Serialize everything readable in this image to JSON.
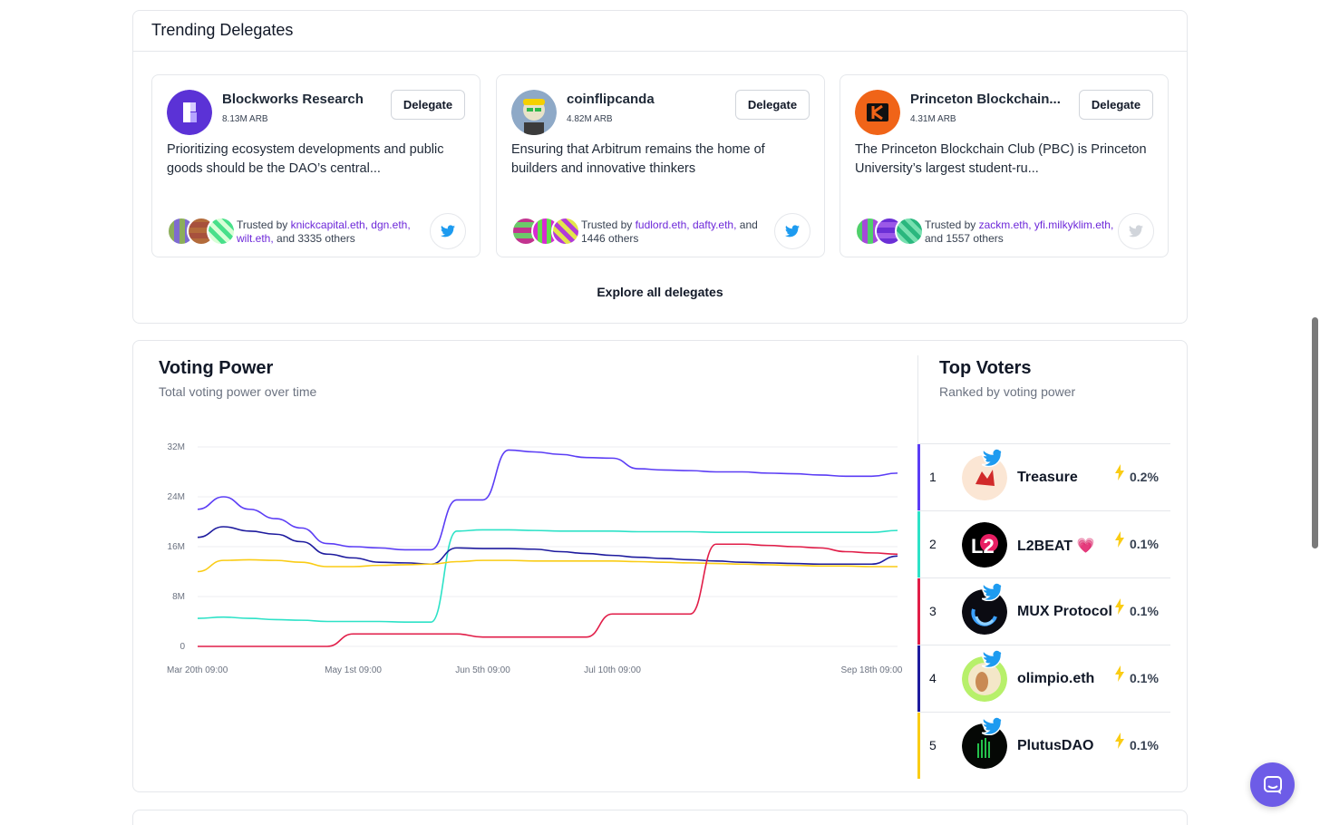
{
  "trending": {
    "title": "Trending Delegates",
    "explore_label": "Explore all delegates",
    "delegates": [
      {
        "name": "Blockworks Research",
        "arb": "8.13M ARB",
        "button": "Delegate",
        "description": "Prioritizing ecosystem developments and public goods should be the DAO’s central...",
        "trusted_prefix": "Trusted by ",
        "trusted_links": "knickcapital.eth, dgn.eth, wilt.eth,",
        "trusted_suffix": " and 3335 others",
        "twitter": "twitter-icon"
      },
      {
        "name": "coinflipcanda",
        "arb": "4.82M ARB",
        "button": "Delegate",
        "description": "Ensuring that Arbitrum remains the home of builders and innovative thinkers",
        "trusted_prefix": "Trusted by ",
        "trusted_links": "fudlord.eth, dafty.eth,",
        "trusted_suffix": " and 1446 others",
        "twitter": "twitter-icon"
      },
      {
        "name": "Princeton Blockchain...",
        "arb": "4.31M ARB",
        "button": "Delegate",
        "description": "The Princeton Blockchain Club (PBC) is Princeton University’s largest student-ru...",
        "trusted_prefix": "Trusted by ",
        "trusted_links": "zackm.eth, yfi.milkyklim.eth,",
        "trusted_suffix": " and 1557 others",
        "twitter": "twitter-icon"
      }
    ]
  },
  "voting_power": {
    "title": "Voting Power",
    "subtitle": "Total voting power over time"
  },
  "top_voters": {
    "title": "Top Voters",
    "subtitle": "Ranked by voting power",
    "items": [
      {
        "rank": "1",
        "name": "Treasure",
        "pct": "0.2%",
        "color": "#5b3df5"
      },
      {
        "rank": "2",
        "name": "L2BEAT 💗",
        "pct": "0.1%",
        "color": "#2de2c7"
      },
      {
        "rank": "3",
        "name": "MUX Protocol",
        "pct": "0.1%",
        "color": "#e11d48"
      },
      {
        "rank": "4",
        "name": "olimpio.eth",
        "pct": "0.1%",
        "color": "#1e1b9e"
      },
      {
        "rank": "5",
        "name": "PlutusDAO",
        "pct": "0.1%",
        "color": "#facc15"
      }
    ]
  },
  "chart_data": {
    "type": "line",
    "title": "Voting Power",
    "subtitle": "Total voting power over time",
    "xlabel": "",
    "ylabel": "",
    "x_tick_labels": [
      "Mar 20th 09:00",
      "May 1st 09:00",
      "Jun 5th 09:00",
      "Jul 10th 09:00",
      "Sep 18th 09:00"
    ],
    "y_tick_labels": [
      "0",
      "8M",
      "16M",
      "24M",
      "32M"
    ],
    "ylim": [
      0,
      32
    ],
    "grid": true,
    "x": [
      "Mar 20",
      "Mar 27",
      "Apr 3",
      "Apr 10",
      "Apr 17",
      "Apr 24",
      "May 1",
      "May 8",
      "May 15",
      "May 22",
      "May 29",
      "Jun 5",
      "Jun 12",
      "Jun 19",
      "Jun 26",
      "Jul 3",
      "Jul 10",
      "Jul 17",
      "Jul 24",
      "Jul 31",
      "Aug 7",
      "Aug 14",
      "Aug 21",
      "Aug 28",
      "Sep 4",
      "Sep 11",
      "Sep 18",
      "Sep 25"
    ],
    "series": [
      {
        "color": "#5b3df5",
        "values": [
          22,
          24,
          22,
          20.5,
          19,
          16.5,
          16,
          15.8,
          15.5,
          15.5,
          23.5,
          23.5,
          31.5,
          31.2,
          30.8,
          30.3,
          30.2,
          28.5,
          28.3,
          28.2,
          28,
          28,
          27.8,
          27.7,
          27.5,
          27.3,
          27.3,
          27.8
        ]
      },
      {
        "color": "#2de2c7",
        "values": [
          4.5,
          4.7,
          4.5,
          4.3,
          4.2,
          4,
          4,
          4,
          3.9,
          3.9,
          18.5,
          18.7,
          18.7,
          18.6,
          18.5,
          18.5,
          18.5,
          18.4,
          18.4,
          18.4,
          18.3,
          18.3,
          18.3,
          18.3,
          18.3,
          18.3,
          18.3,
          18.6
        ]
      },
      {
        "color": "#1e1b9e",
        "values": [
          17.5,
          19.2,
          18.5,
          18,
          16.8,
          14.8,
          14.2,
          13.5,
          13.4,
          13.2,
          15.8,
          15.7,
          15.7,
          15.6,
          15.2,
          14.9,
          14.6,
          14.3,
          14.1,
          13.9,
          13.7,
          13.5,
          13.4,
          13.3,
          13.2,
          13.2,
          13.2,
          14.5
        ]
      },
      {
        "color": "#facc15",
        "values": [
          12,
          13.8,
          13.9,
          13.8,
          13.5,
          12.8,
          12.8,
          13,
          13.1,
          13.2,
          13.6,
          13.8,
          13.8,
          13.7,
          13.7,
          13.7,
          13.7,
          13.6,
          13.5,
          13.4,
          13.3,
          13.2,
          13.1,
          13,
          12.9,
          12.9,
          12.8,
          12.8
        ]
      },
      {
        "color": "#e11d48",
        "values": [
          0,
          0,
          0,
          0,
          0,
          0,
          2,
          2,
          2,
          2,
          2,
          1.5,
          1.5,
          1.5,
          1.5,
          1.5,
          5.2,
          5.2,
          5.2,
          5.2,
          16.4,
          16.4,
          16.2,
          16,
          15.8,
          15.2,
          15,
          14.8
        ]
      }
    ]
  }
}
